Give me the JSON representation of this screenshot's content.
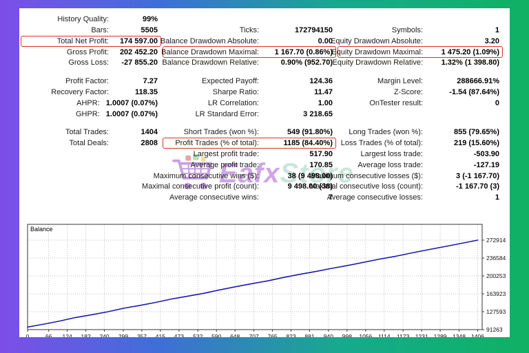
{
  "colors": {
    "frame_gradient": [
      "#7d4ee9",
      "#3f6ed9",
      "#17a98e",
      "#10b163"
    ],
    "highlight_box": "#da3025",
    "balance_line": "#1a1ab0"
  },
  "watermark": {
    "icon": "shopping-cart",
    "part1": "Eafx",
    "part2": "Store"
  },
  "stats": {
    "rows": [
      {
        "cells": [
          {
            "label": "History Quality:",
            "value": "99%"
          },
          null,
          null
        ]
      },
      {
        "cells": [
          {
            "label": "Bars:",
            "value": "5505"
          },
          {
            "label": "Ticks:",
            "value": "172794150"
          },
          {
            "label": "Symbols:",
            "value": "1"
          }
        ]
      },
      {
        "cells": [
          {
            "label": "Total Net Profit:",
            "value": "174 597.00",
            "boxed": true
          },
          {
            "label": "Balance Drawdown Absolute:",
            "value": "0.00"
          },
          {
            "label": "Equity Drawdown Absolute:",
            "value": "3.20"
          }
        ]
      },
      {
        "cells": [
          {
            "label": "Gross Profit:",
            "value": "202 452.20"
          },
          {
            "label": "Balance Drawdown Maximal:",
            "value": "1 167.70 (0.86%)",
            "boxed": true
          },
          {
            "label": "Equity Drawdown Maximal:",
            "value": "1 475.20 (1.09%)",
            "boxed": true
          }
        ]
      },
      {
        "cells": [
          {
            "label": "Gross Loss:",
            "value": "-27 855.20"
          },
          {
            "label": "Balance Drawdown Relative:",
            "value": "0.90% (952.70)"
          },
          {
            "label": "Equity Drawdown Relative:",
            "value": "1.32% (1 398.80)"
          }
        ]
      },
      {
        "spacer": true
      },
      {
        "cells": [
          {
            "label": "Profit Factor:",
            "value": "7.27"
          },
          {
            "label": "Expected Payoff:",
            "value": "124.36"
          },
          {
            "label": "Margin Level:",
            "value": "288666.91%"
          }
        ]
      },
      {
        "cells": [
          {
            "label": "Recovery Factor:",
            "value": "118.35"
          },
          {
            "label": "Sharpe Ratio:",
            "value": "11.47"
          },
          {
            "label": "Z-Score:",
            "value": "-1.54 (87.64%)"
          }
        ]
      },
      {
        "cells": [
          {
            "label": "AHPR:",
            "value": "1.0007 (0.07%)"
          },
          {
            "label": "LR Correlation:",
            "value": "1.00"
          },
          {
            "label": "OnTester result:",
            "value": "0"
          }
        ]
      },
      {
        "cells": [
          {
            "label": "GHPR:",
            "value": "1.0007 (0.07%)"
          },
          {
            "label": "LR Standard Error:",
            "value": "3 218.65"
          },
          null
        ]
      },
      {
        "spacer": true
      },
      {
        "cells": [
          {
            "label": "Total Trades:",
            "value": "1404"
          },
          {
            "label": "Short Trades (won %):",
            "value": "549 (91.80%)"
          },
          {
            "label": "Long Trades (won %):",
            "value": "855 (79.65%)"
          }
        ]
      },
      {
        "cells": [
          {
            "label": "Total Deals:",
            "value": "2808"
          },
          {
            "label": "Profit Trades (% of total):",
            "value": "1185 (84.40%)",
            "boxed": true
          },
          {
            "label": "Loss Trades (% of total):",
            "value": "219 (15.60%)"
          }
        ]
      },
      {
        "cells": [
          null,
          {
            "label": "Largest profit trade:",
            "value": "517.90"
          },
          {
            "label": "Largest loss trade:",
            "value": "-503.90"
          }
        ]
      },
      {
        "cells": [
          null,
          {
            "label": "Average profit trade:",
            "value": "170.85"
          },
          {
            "label": "Average loss trade:",
            "value": "-127.19"
          }
        ]
      },
      {
        "cells": [
          null,
          {
            "label": "Maximum consecutive wins ($):",
            "value": "38 (9 498.00)"
          },
          {
            "label": "Maximum consecutive losses ($):",
            "value": "3 (-1 167.70)"
          }
        ]
      },
      {
        "cells": [
          null,
          {
            "label": "Maximal consecutive profit (count):",
            "value": "9 498.00 (38)"
          },
          {
            "label": "Maximal consecutive loss (count):",
            "value": "-1 167.70 (3)"
          }
        ]
      },
      {
        "cells": [
          null,
          {
            "label": "Average consecutive wins:",
            "value": "7"
          },
          {
            "label": "Average consecutive losses:",
            "value": "1"
          }
        ]
      }
    ]
  },
  "chart_data": {
    "type": "line",
    "title": "Balance",
    "xlabel": "",
    "ylabel": "",
    "grid": "dotted",
    "legend_position": "top-left-inside",
    "x_range": [
      0,
      1420
    ],
    "y_range": [
      91263,
      305000
    ],
    "x_ticks": [
      0,
      66,
      124,
      182,
      240,
      299,
      357,
      415,
      473,
      532,
      590,
      648,
      707,
      765,
      823,
      881,
      940,
      998,
      1056,
      1114,
      1173,
      1231,
      1289,
      1348,
      1406
    ],
    "y_ticks": [
      91263,
      127593,
      163923,
      200253,
      236584,
      272914
    ],
    "series": [
      {
        "name": "Balance",
        "x": [
          0,
          50,
          100,
          150,
          200,
          250,
          300,
          350,
          400,
          450,
          500,
          550,
          600,
          650,
          700,
          750,
          800,
          850,
          900,
          950,
          1000,
          1050,
          1100,
          1150,
          1200,
          1250,
          1300,
          1350,
          1406
        ],
        "y": [
          96500,
          102300,
          108600,
          115800,
          121500,
          127400,
          134500,
          140300,
          146500,
          153400,
          159200,
          164900,
          171800,
          178300,
          184500,
          190200,
          197100,
          203400,
          209100,
          215600,
          221500,
          227900,
          234400,
          240200,
          246900,
          253300,
          259400,
          265800,
          272914
        ]
      }
    ]
  }
}
